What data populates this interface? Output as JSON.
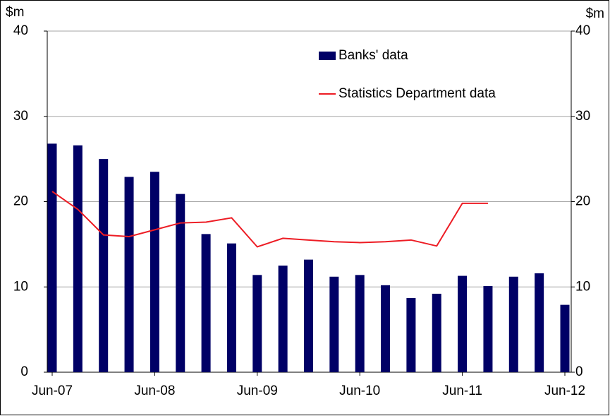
{
  "chart_data": {
    "type": "bar",
    "y_label": "$m",
    "y2_label": "$m",
    "categories": [
      "Jun-07",
      null,
      null,
      null,
      "Jun-08",
      null,
      null,
      null,
      "Jun-09",
      null,
      null,
      null,
      "Jun-10",
      null,
      null,
      null,
      "Jun-11",
      null,
      null,
      null,
      "Jun-12"
    ],
    "series": [
      {
        "name": "Banks' data",
        "type": "bar",
        "color": "#000066",
        "values": [
          26.8,
          26.6,
          25.0,
          22.9,
          23.5,
          20.9,
          16.2,
          15.1,
          11.4,
          12.5,
          13.2,
          11.2,
          11.4,
          10.2,
          8.7,
          9.2,
          11.3,
          10.1,
          11.2,
          11.6,
          7.9
        ]
      },
      {
        "name": "Statistics Department data",
        "type": "line",
        "color": "#ed1c24",
        "axis": "y2",
        "values": [
          21.2,
          19.1,
          16.1,
          15.9,
          16.7,
          17.5,
          17.6,
          18.1,
          14.7,
          15.7,
          15.5,
          15.3,
          15.2,
          15.3,
          15.5,
          14.8,
          19.8,
          19.8,
          null,
          null,
          null
        ]
      }
    ],
    "ylim": [
      0,
      40
    ],
    "yticks": [
      0,
      10,
      20,
      30,
      40
    ],
    "y2lim": [
      0,
      40
    ],
    "y2ticks": [
      0,
      10,
      20,
      30,
      40
    ],
    "grid": true,
    "legend": "top"
  }
}
